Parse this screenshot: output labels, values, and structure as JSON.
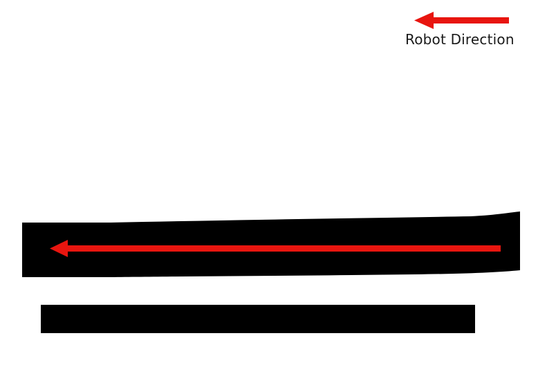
{
  "legend": {
    "label": "Robot Direction",
    "arrow_direction": "left",
    "arrow_color": "#e8150f"
  },
  "path": {
    "arrow_direction": "left",
    "arrow_color": "#e8150f",
    "line_color": "#000000"
  }
}
